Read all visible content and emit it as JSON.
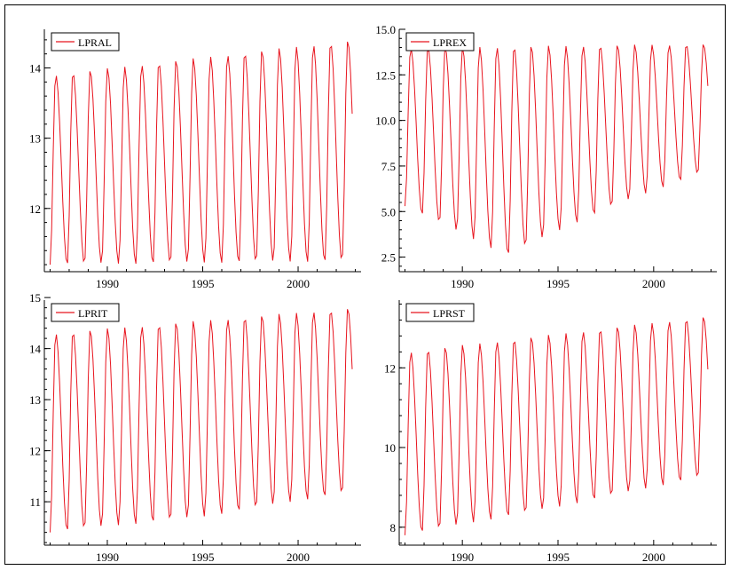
{
  "colors": {
    "series": "#e8141e",
    "axis": "#000000",
    "border": "#000000"
  },
  "chart_data": [
    {
      "type": "line",
      "grid": false,
      "legend_position": "top-left",
      "series": [
        {
          "name": "LPRAL"
        }
      ],
      "xlim": [
        1986.7,
        2003.3
      ],
      "ylim": [
        11.1,
        14.55
      ],
      "x_ticks": [
        1990,
        1995,
        2000
      ],
      "x_tick_labels": [
        "1990",
        "1995",
        "2000"
      ],
      "y_ticks": [
        12,
        13,
        14
      ],
      "y_tick_labels": [
        "12",
        "13",
        "14"
      ],
      "cycle": {
        "start": 1987.0,
        "end": 2002.9,
        "period": 0.9,
        "lows": [
          11.2,
          11.25
        ],
        "highs": [
          13.9,
          14.4
        ],
        "peak_offset": 0.33
      }
    },
    {
      "type": "line",
      "grid": false,
      "legend_position": "top-left",
      "series": [
        {
          "name": "LPREX"
        }
      ],
      "xlim": [
        1986.7,
        2003.3
      ],
      "ylim": [
        1.7,
        15.0
      ],
      "x_ticks": [
        1990,
        1995,
        2000
      ],
      "x_tick_labels": [
        "1990",
        "1995",
        "2000"
      ],
      "y_ticks": [
        2.5,
        5.0,
        7.5,
        10.0,
        12.5,
        15.0
      ],
      "y_tick_labels": [
        "2.5",
        "5.0",
        "7.5",
        "10.0",
        "12.5",
        "15.0"
      ],
      "cycle": {
        "start": 1987.0,
        "end": 2002.9,
        "period": 0.9,
        "lows": [
          5.3,
          2.6,
          5.2,
          7.3
        ],
        "highs": [
          14.0,
          14.2
        ],
        "peak_offset": 0.33
      }
    },
    {
      "type": "line",
      "grid": false,
      "legend_position": "top-left",
      "series": [
        {
          "name": "LPRIT"
        }
      ],
      "xlim": [
        1986.7,
        2003.3
      ],
      "ylim": [
        10.15,
        14.95
      ],
      "x_ticks": [
        1990,
        1995,
        2000
      ],
      "x_tick_labels": [
        "1990",
        "1995",
        "2000"
      ],
      "y_ticks": [
        11,
        12,
        13,
        14,
        15
      ],
      "y_tick_labels": [
        "11",
        "12",
        "13",
        "14",
        "15"
      ],
      "cycle": {
        "start": 1987.0,
        "end": 2002.9,
        "period": 0.9,
        "lows": [
          10.4,
          10.7,
          11.2
        ],
        "highs": [
          14.3,
          14.8
        ],
        "peak_offset": 0.33
      }
    },
    {
      "type": "line",
      "grid": false,
      "legend_position": "top-left",
      "series": [
        {
          "name": "LPRST"
        }
      ],
      "xlim": [
        1986.7,
        2003.3
      ],
      "ylim": [
        7.55,
        13.7
      ],
      "x_ticks": [
        1990,
        1995,
        2000
      ],
      "x_tick_labels": [
        "1990",
        "1995",
        "2000"
      ],
      "y_ticks": [
        8,
        10,
        12
      ],
      "y_tick_labels": [
        "8",
        "10",
        "12"
      ],
      "cycle": {
        "start": 1987.0,
        "end": 2002.9,
        "period": 0.9,
        "lows": [
          7.8,
          8.5,
          9.3
        ],
        "highs": [
          12.4,
          13.3
        ],
        "peak_offset": 0.33
      }
    }
  ]
}
